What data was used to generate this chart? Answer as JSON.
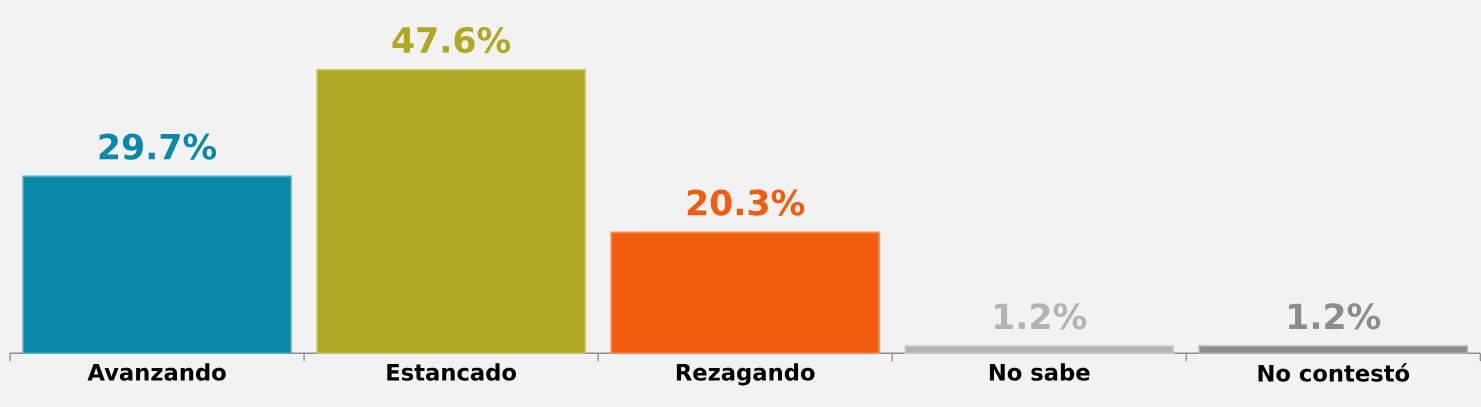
{
  "chart_data": {
    "type": "bar",
    "categories": [
      "Avanzando",
      "Estancado",
      "Rezagando",
      "No sabe",
      "No contestó"
    ],
    "values": [
      29.7,
      47.6,
      20.3,
      1.2,
      1.2
    ],
    "colors": [
      "#0a88a8",
      "#afa822",
      "#f25c0e",
      "#b3b3b3",
      "#8c8c8c"
    ],
    "value_labels": [
      "29.7%",
      "47.6%",
      "20.3%",
      "1.2%",
      "1.2%"
    ]
  }
}
